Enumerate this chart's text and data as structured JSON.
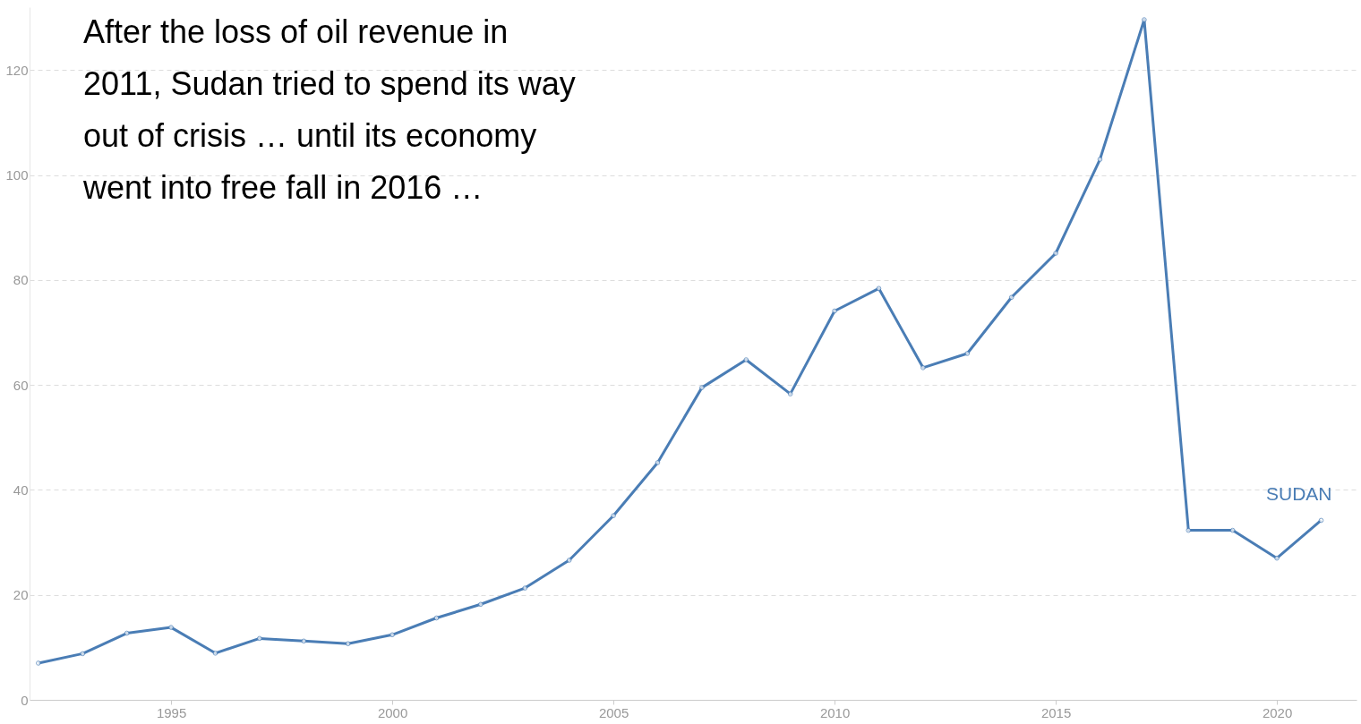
{
  "chart_data": {
    "type": "line",
    "annotations": [
      "After the loss of oil revenue in\n2011, Sudan tried to spend its way\nout of crisis … until its economy\nwent into free fall in 2016 …"
    ],
    "x": [
      1992,
      1993,
      1994,
      1995,
      1996,
      1997,
      1998,
      1999,
      2000,
      2001,
      2002,
      2003,
      2004,
      2005,
      2006,
      2007,
      2008,
      2009,
      2010,
      2011,
      2012,
      2013,
      2014,
      2015,
      2016,
      2017,
      2018,
      2019,
      2020,
      2021
    ],
    "series": [
      {
        "name": "SUDAN",
        "color": "#4a7db5",
        "values": [
          7.0,
          8.8,
          12.7,
          13.8,
          8.9,
          11.7,
          11.2,
          10.7,
          12.4,
          15.6,
          18.2,
          21.3,
          26.6,
          35.1,
          45.2,
          59.5,
          64.8,
          58.3,
          74.1,
          78.4,
          63.3,
          66.0,
          76.7,
          85.1,
          103.0,
          129.6,
          32.3,
          32.3,
          27.0,
          34.2
        ]
      }
    ],
    "xlim": [
      1991.8,
      2021.8
    ],
    "ylim": [
      0,
      132
    ],
    "xticks": [
      1995,
      2000,
      2005,
      2010,
      2015,
      2020
    ],
    "yticks": [
      0,
      20,
      40,
      60,
      80,
      100,
      120
    ],
    "grid": "y",
    "marker": "circle",
    "line_style": "solid"
  }
}
